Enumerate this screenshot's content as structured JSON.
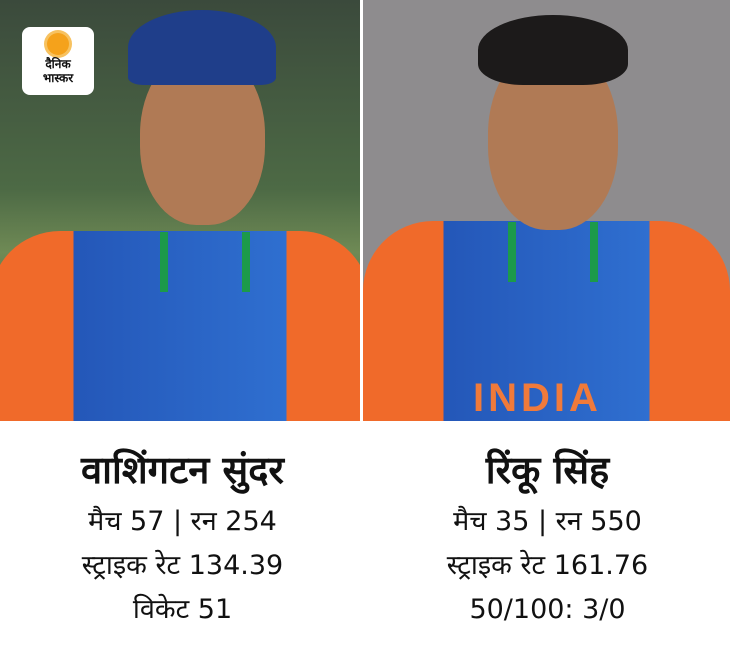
{
  "brand": {
    "logo_line1": "दैनिक",
    "logo_line2": "भास्कर",
    "sun_color": "#f5a21b"
  },
  "players": [
    {
      "name": "वाशिंगटन सुंदर",
      "line1": "मैच 57 | रन 254",
      "line2": "स्ट्राइक रेट 134.39",
      "line3": "विकेट 51"
    },
    {
      "name": "रिंकू सिंह",
      "line1": "मैच 35 | रन 550",
      "line2": "स्ट्राइक रेट 161.76",
      "line3": "50/100: 3/0",
      "jersey_text": "INDIA"
    }
  ]
}
